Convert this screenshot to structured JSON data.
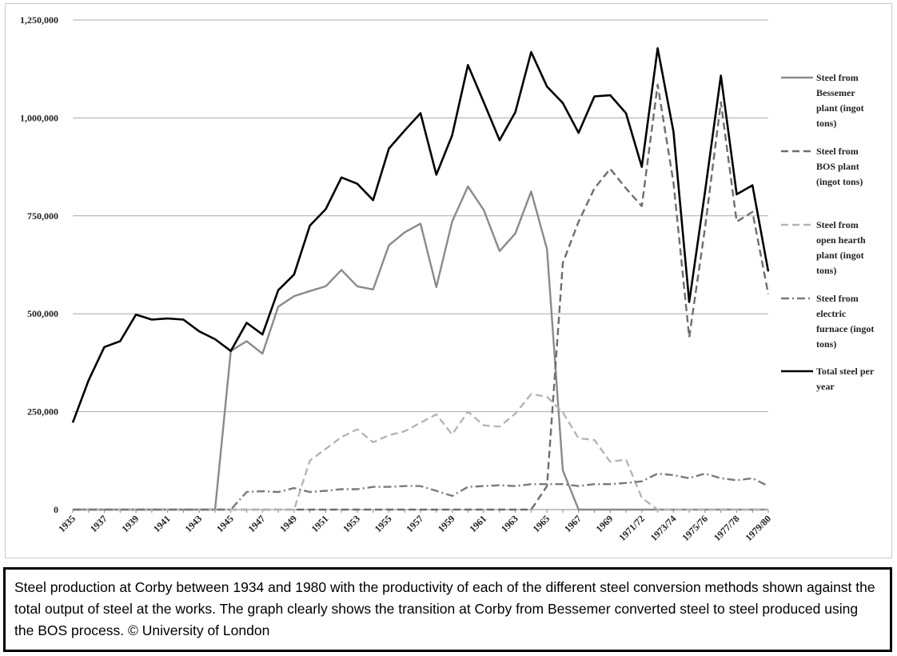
{
  "chart_data": {
    "type": "line",
    "title": "",
    "xlabel": "",
    "ylabel": "",
    "ylim": [
      0,
      1250000
    ],
    "yticks": [
      "1,250,000",
      "1,000,000",
      "750,000",
      "500,000",
      "250,000",
      "0"
    ],
    "ytick_values": [
      1250000,
      1000000,
      750000,
      500000,
      250000,
      0
    ],
    "grid": "horizontal",
    "legend_position": "right",
    "x_categories": [
      "1935",
      "1936",
      "1937",
      "1938",
      "1939",
      "1940",
      "1941",
      "1942",
      "1943",
      "1944",
      "1945",
      "1946",
      "1947",
      "1948",
      "1949",
      "1950",
      "1951",
      "1952",
      "1953",
      "1954",
      "1955",
      "1956",
      "1957",
      "1958",
      "1959",
      "1960",
      "1961",
      "1962",
      "1963",
      "1964",
      "1965",
      "1966",
      "1967",
      "1968",
      "1969",
      "1970",
      "1971/72",
      "1972/73",
      "1973/74",
      "1974/75",
      "1975/76",
      "1976/77",
      "1977/78",
      "1978/79",
      "1979/80"
    ],
    "x_tick_labels": [
      "1935",
      "1937",
      "1939",
      "1941",
      "1943",
      "1945",
      "1947",
      "1949",
      "1951",
      "1953",
      "1955",
      "1957",
      "1959",
      "1961",
      "1963",
      "1965",
      "1967",
      "1969",
      "1971/72",
      "1973/74",
      "1975/76",
      "1977/78",
      "1979/80"
    ],
    "series": [
      {
        "name": "Steel from Bessemer plant (ingot tons)",
        "style": "solid",
        "color": "#8a8a8a",
        "values": [
          0,
          0,
          0,
          0,
          0,
          0,
          0,
          0,
          0,
          0,
          405000,
          430000,
          398000,
          518000,
          545000,
          558000,
          570000,
          612000,
          570000,
          562000,
          675000,
          708000,
          730000,
          568000,
          735000,
          825000,
          765000,
          660000,
          705000,
          812000,
          665000,
          100000,
          0,
          0,
          0,
          0,
          0,
          0,
          0,
          0,
          0,
          0,
          0,
          0,
          0
        ]
      },
      {
        "name": "Steel from BOS plant (ingot tons)",
        "style": "dashed",
        "color": "#6e6e6e",
        "values": [
          0,
          0,
          0,
          0,
          0,
          0,
          0,
          0,
          0,
          0,
          0,
          0,
          0,
          0,
          0,
          0,
          0,
          0,
          0,
          0,
          0,
          0,
          0,
          0,
          0,
          0,
          0,
          0,
          0,
          0,
          60000,
          630000,
          735000,
          820000,
          870000,
          820000,
          775000,
          1085000,
          835000,
          440000,
          720000,
          1040000,
          735000,
          760000,
          550000
        ]
      },
      {
        "name": "Steel from open hearth plant (ingot tons)",
        "style": "dashed",
        "color": "#b5b5b5",
        "values": [
          0,
          0,
          0,
          0,
          0,
          0,
          0,
          0,
          0,
          0,
          0,
          0,
          0,
          0,
          0,
          125000,
          155000,
          185000,
          205000,
          172000,
          190000,
          200000,
          222000,
          243000,
          192000,
          250000,
          215000,
          212000,
          245000,
          295000,
          288000,
          248000,
          182000,
          178000,
          122000,
          128000,
          30000,
          0,
          0,
          0,
          0,
          0,
          0,
          0,
          0
        ]
      },
      {
        "name": "Steel from electric furnace (ingot tons)",
        "style": "dashdot",
        "color": "#7a7a7a",
        "values": [
          0,
          0,
          0,
          0,
          0,
          0,
          0,
          0,
          0,
          0,
          0,
          45000,
          47000,
          45000,
          55000,
          45000,
          48000,
          52000,
          52000,
          58000,
          58000,
          60000,
          60000,
          48000,
          35000,
          58000,
          60000,
          62000,
          60000,
          65000,
          65000,
          65000,
          60000,
          65000,
          65000,
          68000,
          72000,
          92000,
          88000,
          80000,
          92000,
          80000,
          75000,
          80000,
          60000
        ]
      },
      {
        "name": "Total steel per year",
        "style": "solid",
        "color": "#000000",
        "values": [
          222000,
          330000,
          415000,
          430000,
          498000,
          485000,
          488000,
          485000,
          455000,
          435000,
          405000,
          477000,
          447000,
          560000,
          600000,
          725000,
          767000,
          848000,
          832000,
          790000,
          922000,
          968000,
          1012000,
          855000,
          955000,
          1135000,
          1040000,
          943000,
          1015000,
          1168000,
          1080000,
          1038000,
          962000,
          1055000,
          1058000,
          1012000,
          875000,
          1178000,
          965000,
          530000,
          812000,
          1108000,
          805000,
          828000,
          608000
        ]
      }
    ]
  },
  "legend": [
    {
      "lines": [
        "Steel from",
        "Bessemer",
        "plant (ingot",
        "tons)"
      ]
    },
    {
      "lines": [
        "Steel from",
        "BOS plant",
        "(ingot tons)"
      ]
    },
    {
      "lines": [
        "Steel from",
        "open hearth",
        "plant (ingot",
        "tons)"
      ]
    },
    {
      "lines": [
        "Steel from",
        "electric",
        "furnace (ingot",
        "tons)"
      ]
    },
    {
      "lines": [
        "Total steel per",
        "year"
      ]
    }
  ],
  "caption": "Steel production at Corby between 1934 and 1980 with the productivity of each of the different steel conversion methods shown against the total output of steel at the works. The graph clearly shows the transition at Corby from Bessemer converted steel to steel produced using the BOS process. © University of London"
}
